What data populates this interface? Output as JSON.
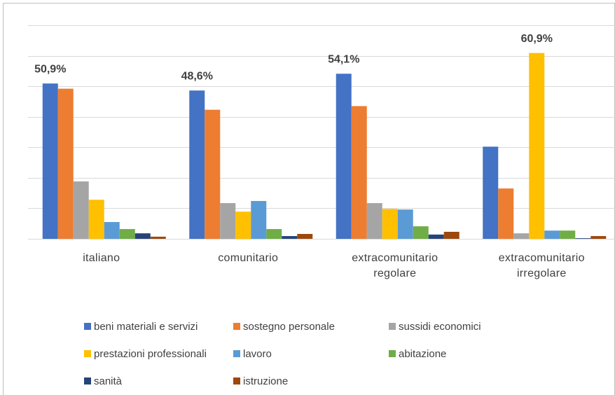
{
  "chart_data": {
    "type": "bar",
    "categories": [
      "italiano",
      "comunitario",
      "extracomunitario regolare",
      "extracomunitario irregolare"
    ],
    "series": [
      {
        "name": "beni materiali e servizi",
        "color": "#4472c4",
        "values": [
          50.9,
          48.6,
          54.1,
          30.2
        ],
        "value_labels": [
          "50,9%",
          "48,6%",
          "54,1%",
          null
        ]
      },
      {
        "name": "sostegno personale",
        "color": "#ed7d31",
        "values": [
          49.2,
          42.3,
          43.5,
          16.5
        ]
      },
      {
        "name": "sussidi economici",
        "color": "#a5a5a5",
        "values": [
          18.8,
          11.7,
          11.7,
          1.8
        ]
      },
      {
        "name": "prestazioni professionali",
        "color": "#ffc000",
        "values": [
          12.8,
          8.9,
          9.8,
          60.9
        ],
        "value_labels": [
          null,
          null,
          null,
          "60,9%"
        ]
      },
      {
        "name": "lavoro",
        "color": "#5b9bd5",
        "values": [
          5.5,
          12.4,
          9.6,
          2.7
        ]
      },
      {
        "name": "abitazione",
        "color": "#70ad47",
        "values": [
          3.2,
          3.2,
          4.1,
          2.7
        ]
      },
      {
        "name": "sanità",
        "color": "#264478",
        "values": [
          1.8,
          0.9,
          1.4,
          0.2
        ]
      },
      {
        "name": "istruzione",
        "color": "#9e480e",
        "values": [
          0.7,
          1.6,
          2.3,
          0.9
        ]
      }
    ],
    "ylim": [
      0,
      70
    ],
    "yticks": [
      0,
      10,
      20,
      30,
      40,
      50,
      60,
      70
    ],
    "grid": true,
    "legend": "bottom"
  }
}
